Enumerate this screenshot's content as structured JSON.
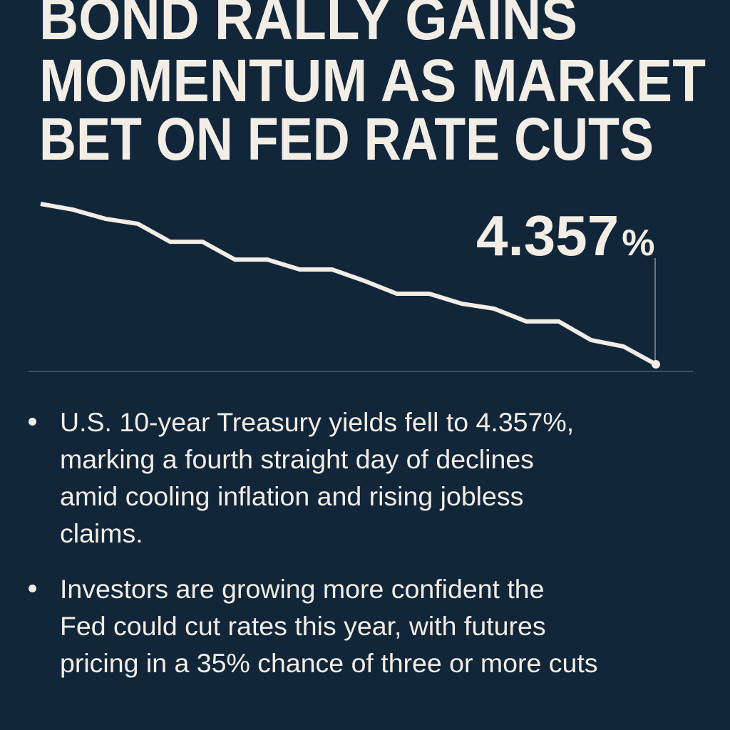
{
  "headline": {
    "lines": [
      "BOND RALLY GAINS",
      "MOMENTUM AS MARKET",
      "BET ON FED RATE CUTS"
    ]
  },
  "chart_data": {
    "type": "line",
    "title": "",
    "xlabel": "",
    "ylabel": "",
    "axes_visible": false,
    "grid": false,
    "y_units": "relative (unlabeled axis, 100 = start, 0 = latest)",
    "x": [
      0,
      1,
      2,
      3,
      4,
      5,
      6,
      7,
      8,
      9,
      10,
      11,
      12,
      13,
      14,
      15,
      16,
      17,
      18,
      19
    ],
    "values": [
      100,
      96.4,
      90.7,
      87.6,
      76.4,
      76.4,
      65.3,
      65.3,
      59.1,
      59.1,
      52,
      44,
      44,
      37.8,
      34.7,
      26.7,
      26.7,
      15.1,
      11.1,
      0
    ],
    "ylim": [
      0,
      100
    ],
    "annotation": {
      "value": "4.357",
      "unit": "%",
      "point_index": 19
    },
    "line_color": "#f2ede5",
    "background_color": "#12263a"
  },
  "bullets": [
    {
      "lines": [
        "U.S. 10-year Treasury yields fell to 4.357%,",
        "marking a fourth straight day of declines",
        "amid cooling inflation and rising jobless",
        "claims."
      ]
    },
    {
      "lines": [
        "Investors are growing more confident the",
        "Fed could cut rates this year, with futures",
        "pricing in a 35% chance of three or more cuts"
      ]
    }
  ]
}
